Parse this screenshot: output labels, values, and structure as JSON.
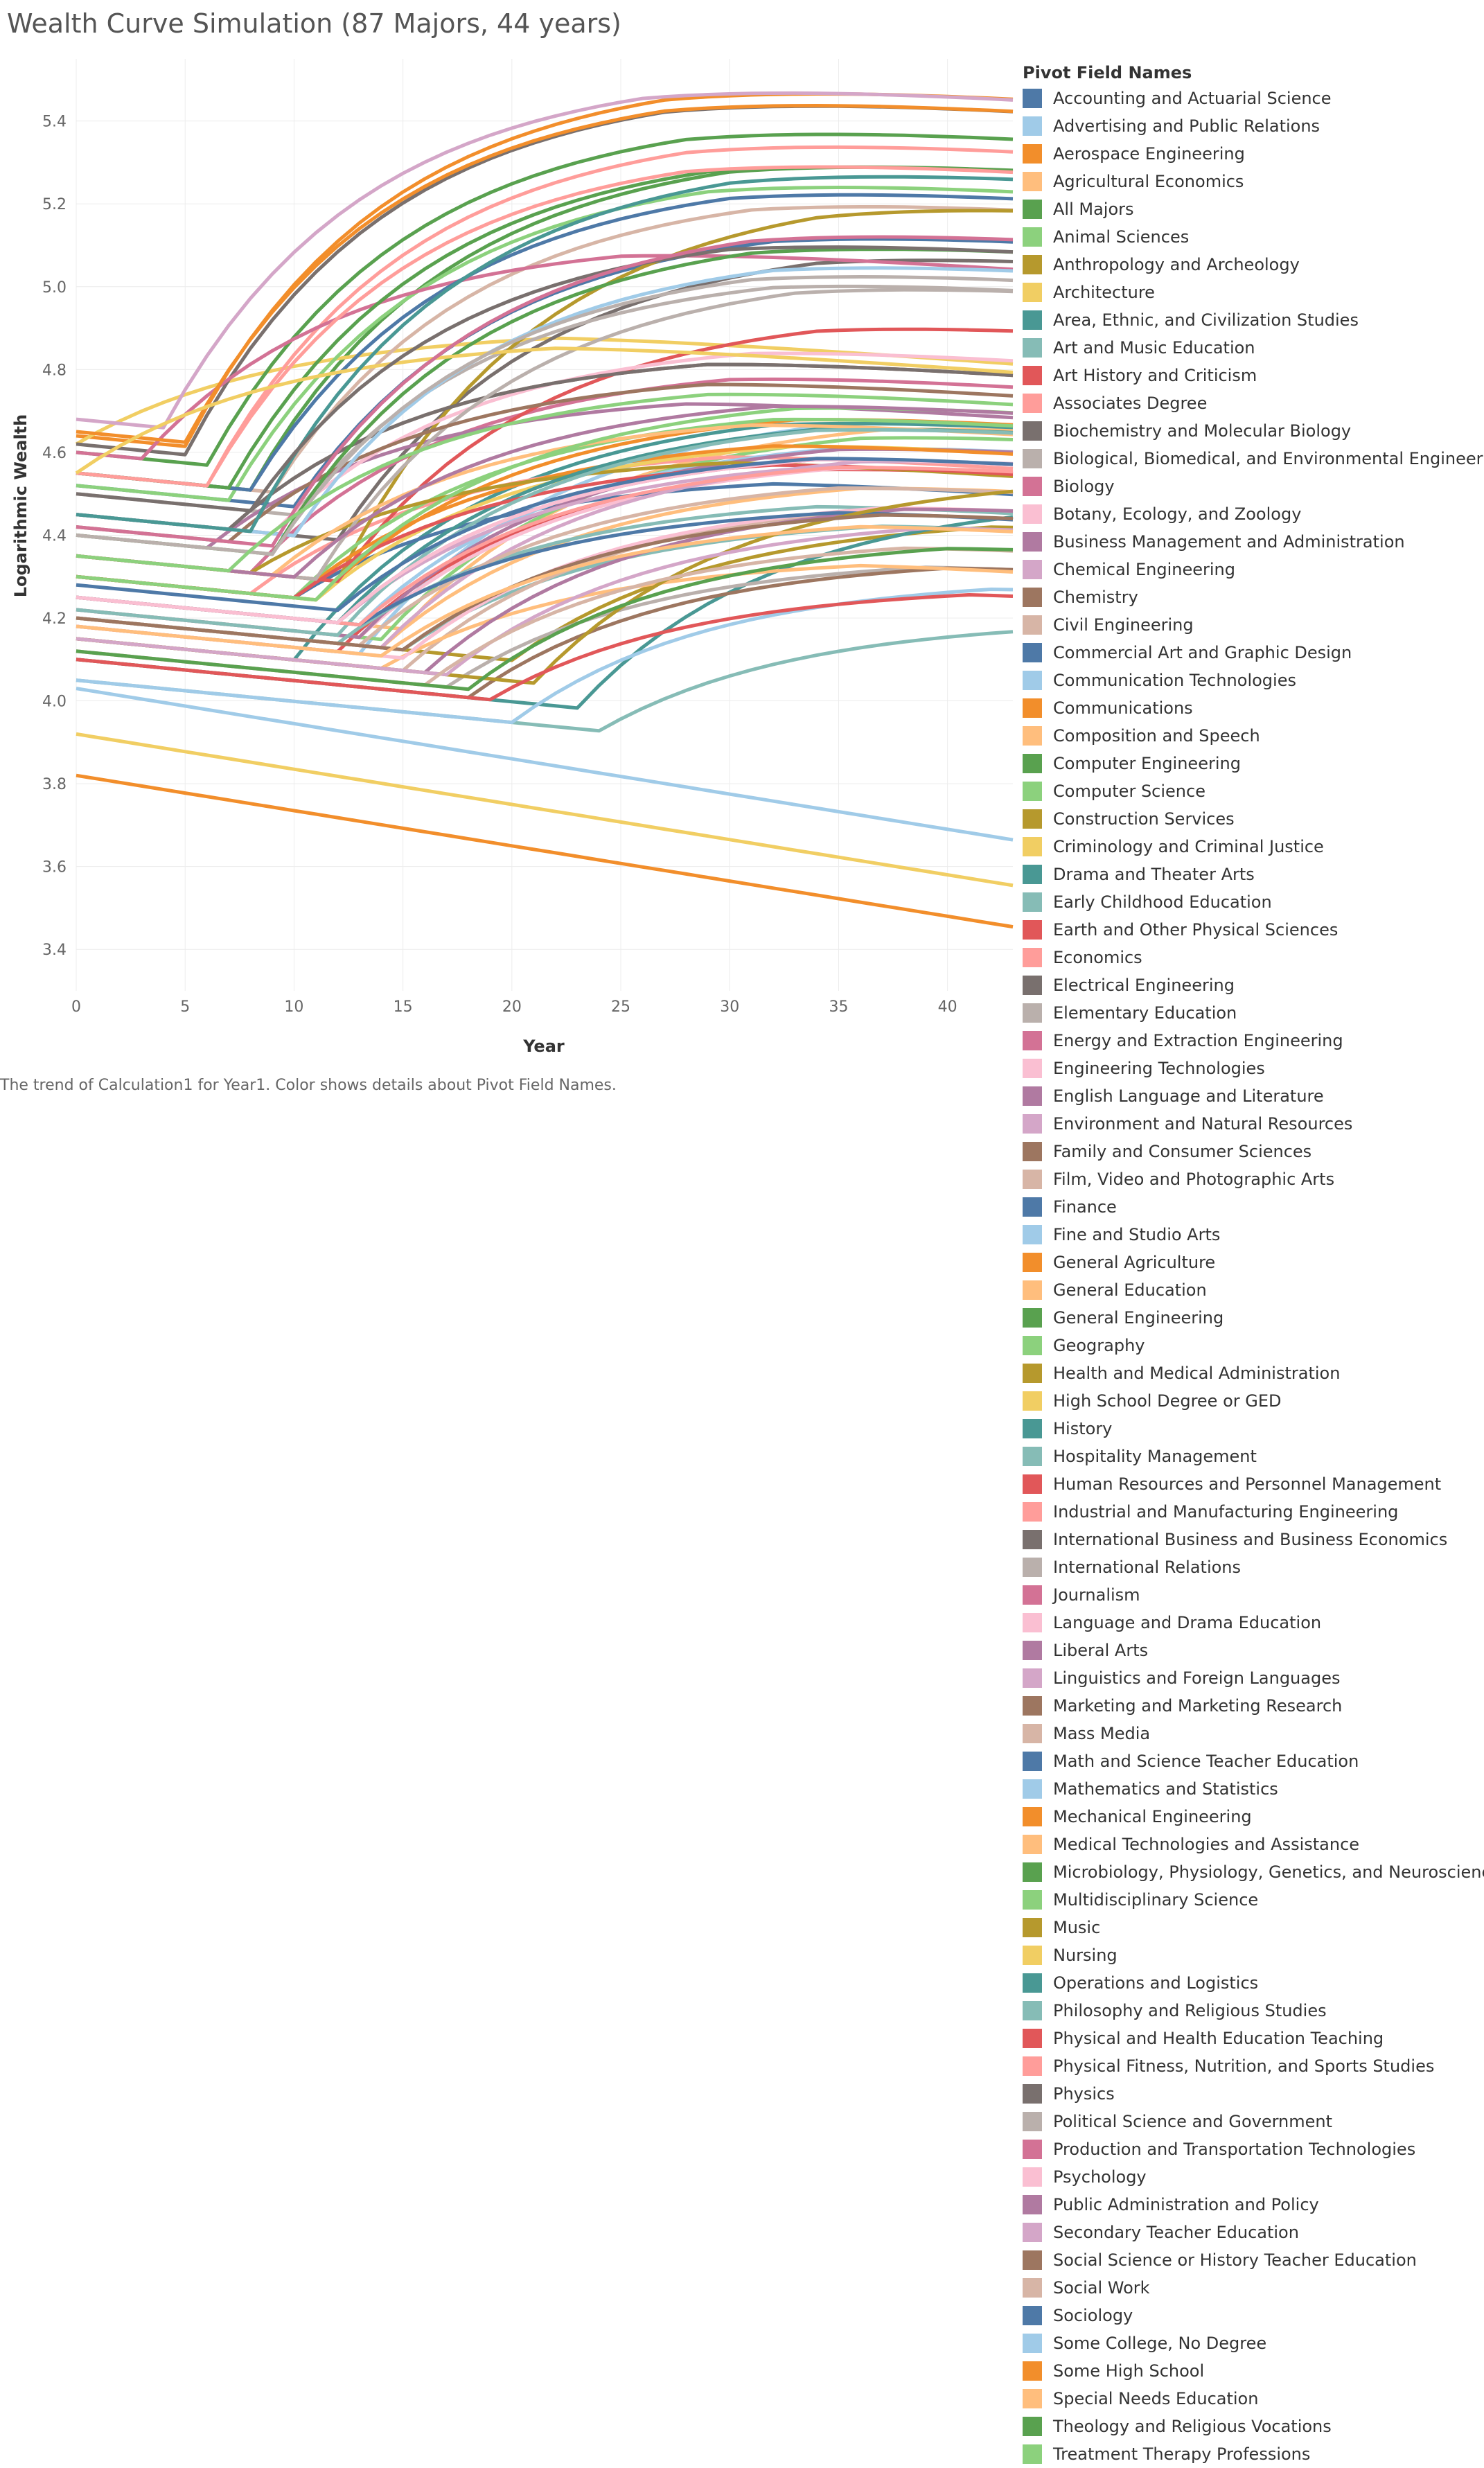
{
  "title": "Wealth Curve Simulation (87 Majors, 44 years)",
  "caption": "The trend of Calculation1 for Year1.  Color shows details about Pivot Field Names.",
  "chart_data": {
    "type": "line",
    "xlabel": "Year",
    "ylabel": "Logarithmic Wealth",
    "xlim": [
      0,
      43
    ],
    "ylim": [
      3.3,
      5.55
    ],
    "x_ticks": [
      0,
      5,
      10,
      15,
      20,
      25,
      30,
      35,
      40
    ],
    "y_ticks": [
      3.4,
      3.6,
      3.8,
      4.0,
      4.2,
      4.4,
      4.6,
      4.8,
      5.0,
      5.2,
      5.4
    ],
    "grid": true,
    "legend_title": "Pivot Field Names",
    "legend_position": "right",
    "palette": [
      "#4e79a7",
      "#a0cbe8",
      "#f28e2b",
      "#ffbe7d",
      "#59a14f",
      "#8cd17d",
      "#b6992d",
      "#f1ce63",
      "#499894",
      "#86bcb6",
      "#e15759",
      "#ff9d9a",
      "#79706e",
      "#bab0ac",
      "#d37295",
      "#fabfd2",
      "#b07aa1",
      "#d4a6c8",
      "#9d7660",
      "#d7b5a6"
    ],
    "series": [
      {
        "name": "Accounting and Actuarial Science",
        "start": 4.52,
        "peak": 5.17,
        "break": 10
      },
      {
        "name": "Advertising and Public Relations",
        "start": 4.18,
        "peak": 4.72,
        "break": 13
      },
      {
        "name": "Aerospace Engineering",
        "start": 4.64,
        "peak": 5.53,
        "break": 5
      },
      {
        "name": "Agricultural Economics",
        "start": 4.25,
        "peak": 4.7,
        "break": 15
      },
      {
        "name": "All Majors",
        "start": 4.55,
        "peak": 5.35,
        "break": 8
      },
      {
        "name": "Animal Sciences",
        "start": 4.22,
        "peak": 4.68,
        "break": 14
      },
      {
        "name": "Anthropology and Archeology",
        "start": 4.2,
        "peak": 4.45,
        "break": 20
      },
      {
        "name": "Architecture",
        "start": 4.62,
        "peak": 4.9,
        "break": 0
      },
      {
        "name": "Area, Ethnic, and Civilization Studies",
        "start": 4.15,
        "peak": 4.72,
        "break": 10
      },
      {
        "name": "Art and Music Education",
        "start": 4.2,
        "peak": 4.45,
        "break": 15
      },
      {
        "name": "Art History and Criticism",
        "start": 4.18,
        "peak": 4.6,
        "break": 12
      },
      {
        "name": "Associates Degree",
        "start": 4.3,
        "peak": 4.62,
        "break": 8
      },
      {
        "name": "Biochemistry and Molecular Biology",
        "start": 4.45,
        "peak": 5.12,
        "break": 12
      },
      {
        "name": "Biological, Biomedical, and Environmental Engineering",
        "start": 4.5,
        "peak": 5.05,
        "break": 10
      },
      {
        "name": "Biology",
        "start": 4.35,
        "peak": 4.82,
        "break": 8
      },
      {
        "name": "Botany, Ecology, and Zoology",
        "start": 4.22,
        "peak": 4.6,
        "break": 13
      },
      {
        "name": "Business Management and Administration",
        "start": 4.4,
        "peak": 4.75,
        "break": 6
      },
      {
        "name": "Chemical Engineering",
        "start": 4.68,
        "peak": 5.53,
        "break": 4
      },
      {
        "name": "Chemistry",
        "start": 4.45,
        "peak": 4.85,
        "break": 7
      },
      {
        "name": "Civil Engineering",
        "start": 4.55,
        "peak": 5.25,
        "break": 9
      },
      {
        "name": "Commercial Art and Graphic Design",
        "start": 4.3,
        "peak": 4.55,
        "break": 10
      },
      {
        "name": "Communication Technologies",
        "start": 4.25,
        "peak": 4.65,
        "break": 13
      },
      {
        "name": "Communications",
        "start": 4.3,
        "peak": 4.72,
        "break": 11
      },
      {
        "name": "Composition and Speech",
        "start": 4.2,
        "peak": 4.55,
        "break": 14
      },
      {
        "name": "Computer Engineering",
        "start": 4.6,
        "peak": 5.43,
        "break": 6
      },
      {
        "name": "Computer Science",
        "start": 4.52,
        "peak": 5.3,
        "break": 7
      },
      {
        "name": "Construction Services",
        "start": 4.35,
        "peak": 5.25,
        "break": 12
      },
      {
        "name": "Criminology and Criminal Justice",
        "start": 4.3,
        "peak": 4.65,
        "break": 11
      },
      {
        "name": "Drama and Theater Arts",
        "start": 4.1,
        "peak": 4.5,
        "break": 23
      },
      {
        "name": "Early Childhood Education",
        "start": 4.05,
        "peak": 4.2,
        "break": 24
      },
      {
        "name": "Earth and Other Physical Sciences",
        "start": 4.35,
        "peak": 4.95,
        "break": 12
      },
      {
        "name": "Economics",
        "start": 4.55,
        "peak": 5.4,
        "break": 6
      },
      {
        "name": "Electrical Engineering",
        "start": 4.62,
        "peak": 5.5,
        "break": 5
      },
      {
        "name": "Elementary Education",
        "start": 4.12,
        "peak": 4.35,
        "break": 17
      },
      {
        "name": "Energy and Extraction Engineering",
        "start": 4.6,
        "peak": 5.12,
        "break": 3
      },
      {
        "name": "Engineering Technologies",
        "start": 4.45,
        "peak": 4.88,
        "break": 9
      },
      {
        "name": "English Language and Literature",
        "start": 4.22,
        "peak": 4.65,
        "break": 13
      },
      {
        "name": "Environment and Natural Resources",
        "start": 4.25,
        "peak": 4.6,
        "break": 12
      },
      {
        "name": "Family and Consumer Sciences",
        "start": 4.1,
        "peak": 4.35,
        "break": 18
      },
      {
        "name": "Film, Video and Photographic Arts",
        "start": 4.15,
        "peak": 4.5,
        "break": 15
      },
      {
        "name": "Finance",
        "start": 4.55,
        "peak": 5.28,
        "break": 8
      },
      {
        "name": "Fine and Studio Arts",
        "start": 4.05,
        "peak": 4.3,
        "break": 20
      },
      {
        "name": "General Agriculture",
        "start": 4.3,
        "peak": 4.65,
        "break": 10
      },
      {
        "name": "General Education",
        "start": 4.15,
        "peak": 4.35,
        "break": 14
      },
      {
        "name": "General Engineering",
        "start": 4.55,
        "peak": 5.35,
        "break": 7
      },
      {
        "name": "Geography",
        "start": 4.3,
        "peak": 4.72,
        "break": 10
      },
      {
        "name": "Health and Medical Administration",
        "start": 4.35,
        "peak": 4.6,
        "break": 8
      },
      {
        "name": "High School Degree or GED",
        "start": 3.92,
        "peak": 3.92,
        "break": 0
      },
      {
        "name": "History",
        "start": 4.25,
        "peak": 4.7,
        "break": 12
      },
      {
        "name": "Hospitality Management",
        "start": 4.2,
        "peak": 4.5,
        "break": 12
      },
      {
        "name": "Human Resources and Personnel Management",
        "start": 4.3,
        "peak": 4.6,
        "break": 10
      },
      {
        "name": "Industrial and Manufacturing Engineering",
        "start": 4.55,
        "peak": 5.35,
        "break": 6
      },
      {
        "name": "International Business and Business Economics",
        "start": 4.45,
        "peak": 4.85,
        "break": 7
      },
      {
        "name": "International Relations",
        "start": 4.35,
        "peak": 5.05,
        "break": 11
      },
      {
        "name": "Journalism",
        "start": 4.25,
        "peak": 4.62,
        "break": 12
      },
      {
        "name": "Language and Drama Education",
        "start": 4.18,
        "peak": 4.5,
        "break": 15
      },
      {
        "name": "Liberal Arts",
        "start": 4.15,
        "peak": 4.5,
        "break": 16
      },
      {
        "name": "Linguistics and Foreign Languages",
        "start": 4.2,
        "peak": 4.62,
        "break": 14
      },
      {
        "name": "Marketing and Marketing Research",
        "start": 4.42,
        "peak": 4.8,
        "break": 7
      },
      {
        "name": "Mass Media",
        "start": 4.2,
        "peak": 4.55,
        "break": 13
      },
      {
        "name": "Math and Science Teacher Education",
        "start": 4.25,
        "peak": 4.48,
        "break": 13
      },
      {
        "name": "Mathematics and Statistics",
        "start": 4.45,
        "peak": 5.1,
        "break": 10
      },
      {
        "name": "Mechanical Engineering",
        "start": 4.65,
        "peak": 5.5,
        "break": 5
      },
      {
        "name": "Medical Technologies and Assistance",
        "start": 4.35,
        "peak": 4.7,
        "break": 9
      },
      {
        "name": "Microbiology, Physiology, Genetics, and Neuroscience",
        "start": 4.4,
        "peak": 5.15,
        "break": 9
      },
      {
        "name": "Multidisciplinary Science",
        "start": 4.3,
        "peak": 4.75,
        "break": 11
      },
      {
        "name": "Music",
        "start": 4.15,
        "peak": 4.55,
        "break": 21
      },
      {
        "name": "Nursing",
        "start": 4.55,
        "peak": 4.88,
        "break": 0
      },
      {
        "name": "Operations and Logistics",
        "start": 4.45,
        "peak": 5.33,
        "break": 8
      },
      {
        "name": "Philosophy and Religious Studies",
        "start": 4.22,
        "peak": 4.7,
        "break": 12
      },
      {
        "name": "Physical and Health Education Teaching",
        "start": 4.1,
        "peak": 4.28,
        "break": 19
      },
      {
        "name": "Physical Fitness, Nutrition, and Sports Studies",
        "start": 4.25,
        "peak": 4.6,
        "break": 13
      },
      {
        "name": "Physics",
        "start": 4.5,
        "peak": 5.15,
        "break": 8
      },
      {
        "name": "Political Science and Government",
        "start": 4.4,
        "peak": 5.08,
        "break": 9
      },
      {
        "name": "Production and Transportation Technologies",
        "start": 4.42,
        "peak": 5.18,
        "break": 9
      },
      {
        "name": "Psychology",
        "start": 4.25,
        "peak": 4.62,
        "break": 12
      },
      {
        "name": "Public Administration and Policy",
        "start": 4.35,
        "peak": 4.75,
        "break": 10
      },
      {
        "name": "Secondary Teacher Education",
        "start": 4.15,
        "peak": 4.45,
        "break": 17
      },
      {
        "name": "Social Science or History Teacher Education",
        "start": 4.2,
        "peak": 4.48,
        "break": 15
      },
      {
        "name": "Social Work",
        "start": 4.12,
        "peak": 4.4,
        "break": 16
      },
      {
        "name": "Sociology",
        "start": 4.28,
        "peak": 4.62,
        "break": 12
      },
      {
        "name": "Some College, No Degree",
        "start": 4.03,
        "peak": 4.03,
        "break": 0
      },
      {
        "name": "Some High School",
        "start": 3.82,
        "peak": 3.82,
        "break": 0
      },
      {
        "name": "Special Needs Education",
        "start": 4.18,
        "peak": 4.45,
        "break": 14
      },
      {
        "name": "Theology and Religious Vocations",
        "start": 4.12,
        "peak": 4.4,
        "break": 18
      },
      {
        "name": "Treatment Therapy Professions",
        "start": 4.35,
        "peak": 4.78,
        "break": 7
      }
    ]
  }
}
